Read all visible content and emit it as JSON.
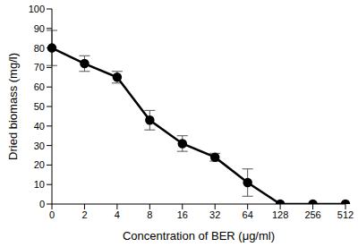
{
  "chart_data": {
    "type": "line",
    "x_label": "Concentration of BER (μg/ml)",
    "y_label": "Dried biomass (mg/l)",
    "categories": [
      "0",
      "2",
      "4",
      "8",
      "16",
      "32",
      "64",
      "128",
      "256",
      "512"
    ],
    "values": [
      80,
      72,
      65,
      43,
      31,
      24,
      11,
      0,
      0,
      0
    ],
    "errors": [
      9,
      4,
      3,
      5,
      4,
      2,
      7,
      0,
      0,
      0
    ],
    "color": "#000000",
    "marker": "circle",
    "ylim": [
      0,
      100
    ],
    "yticks": [
      0,
      10,
      20,
      30,
      40,
      50,
      60,
      70,
      80,
      90,
      100
    ],
    "grid": false
  }
}
